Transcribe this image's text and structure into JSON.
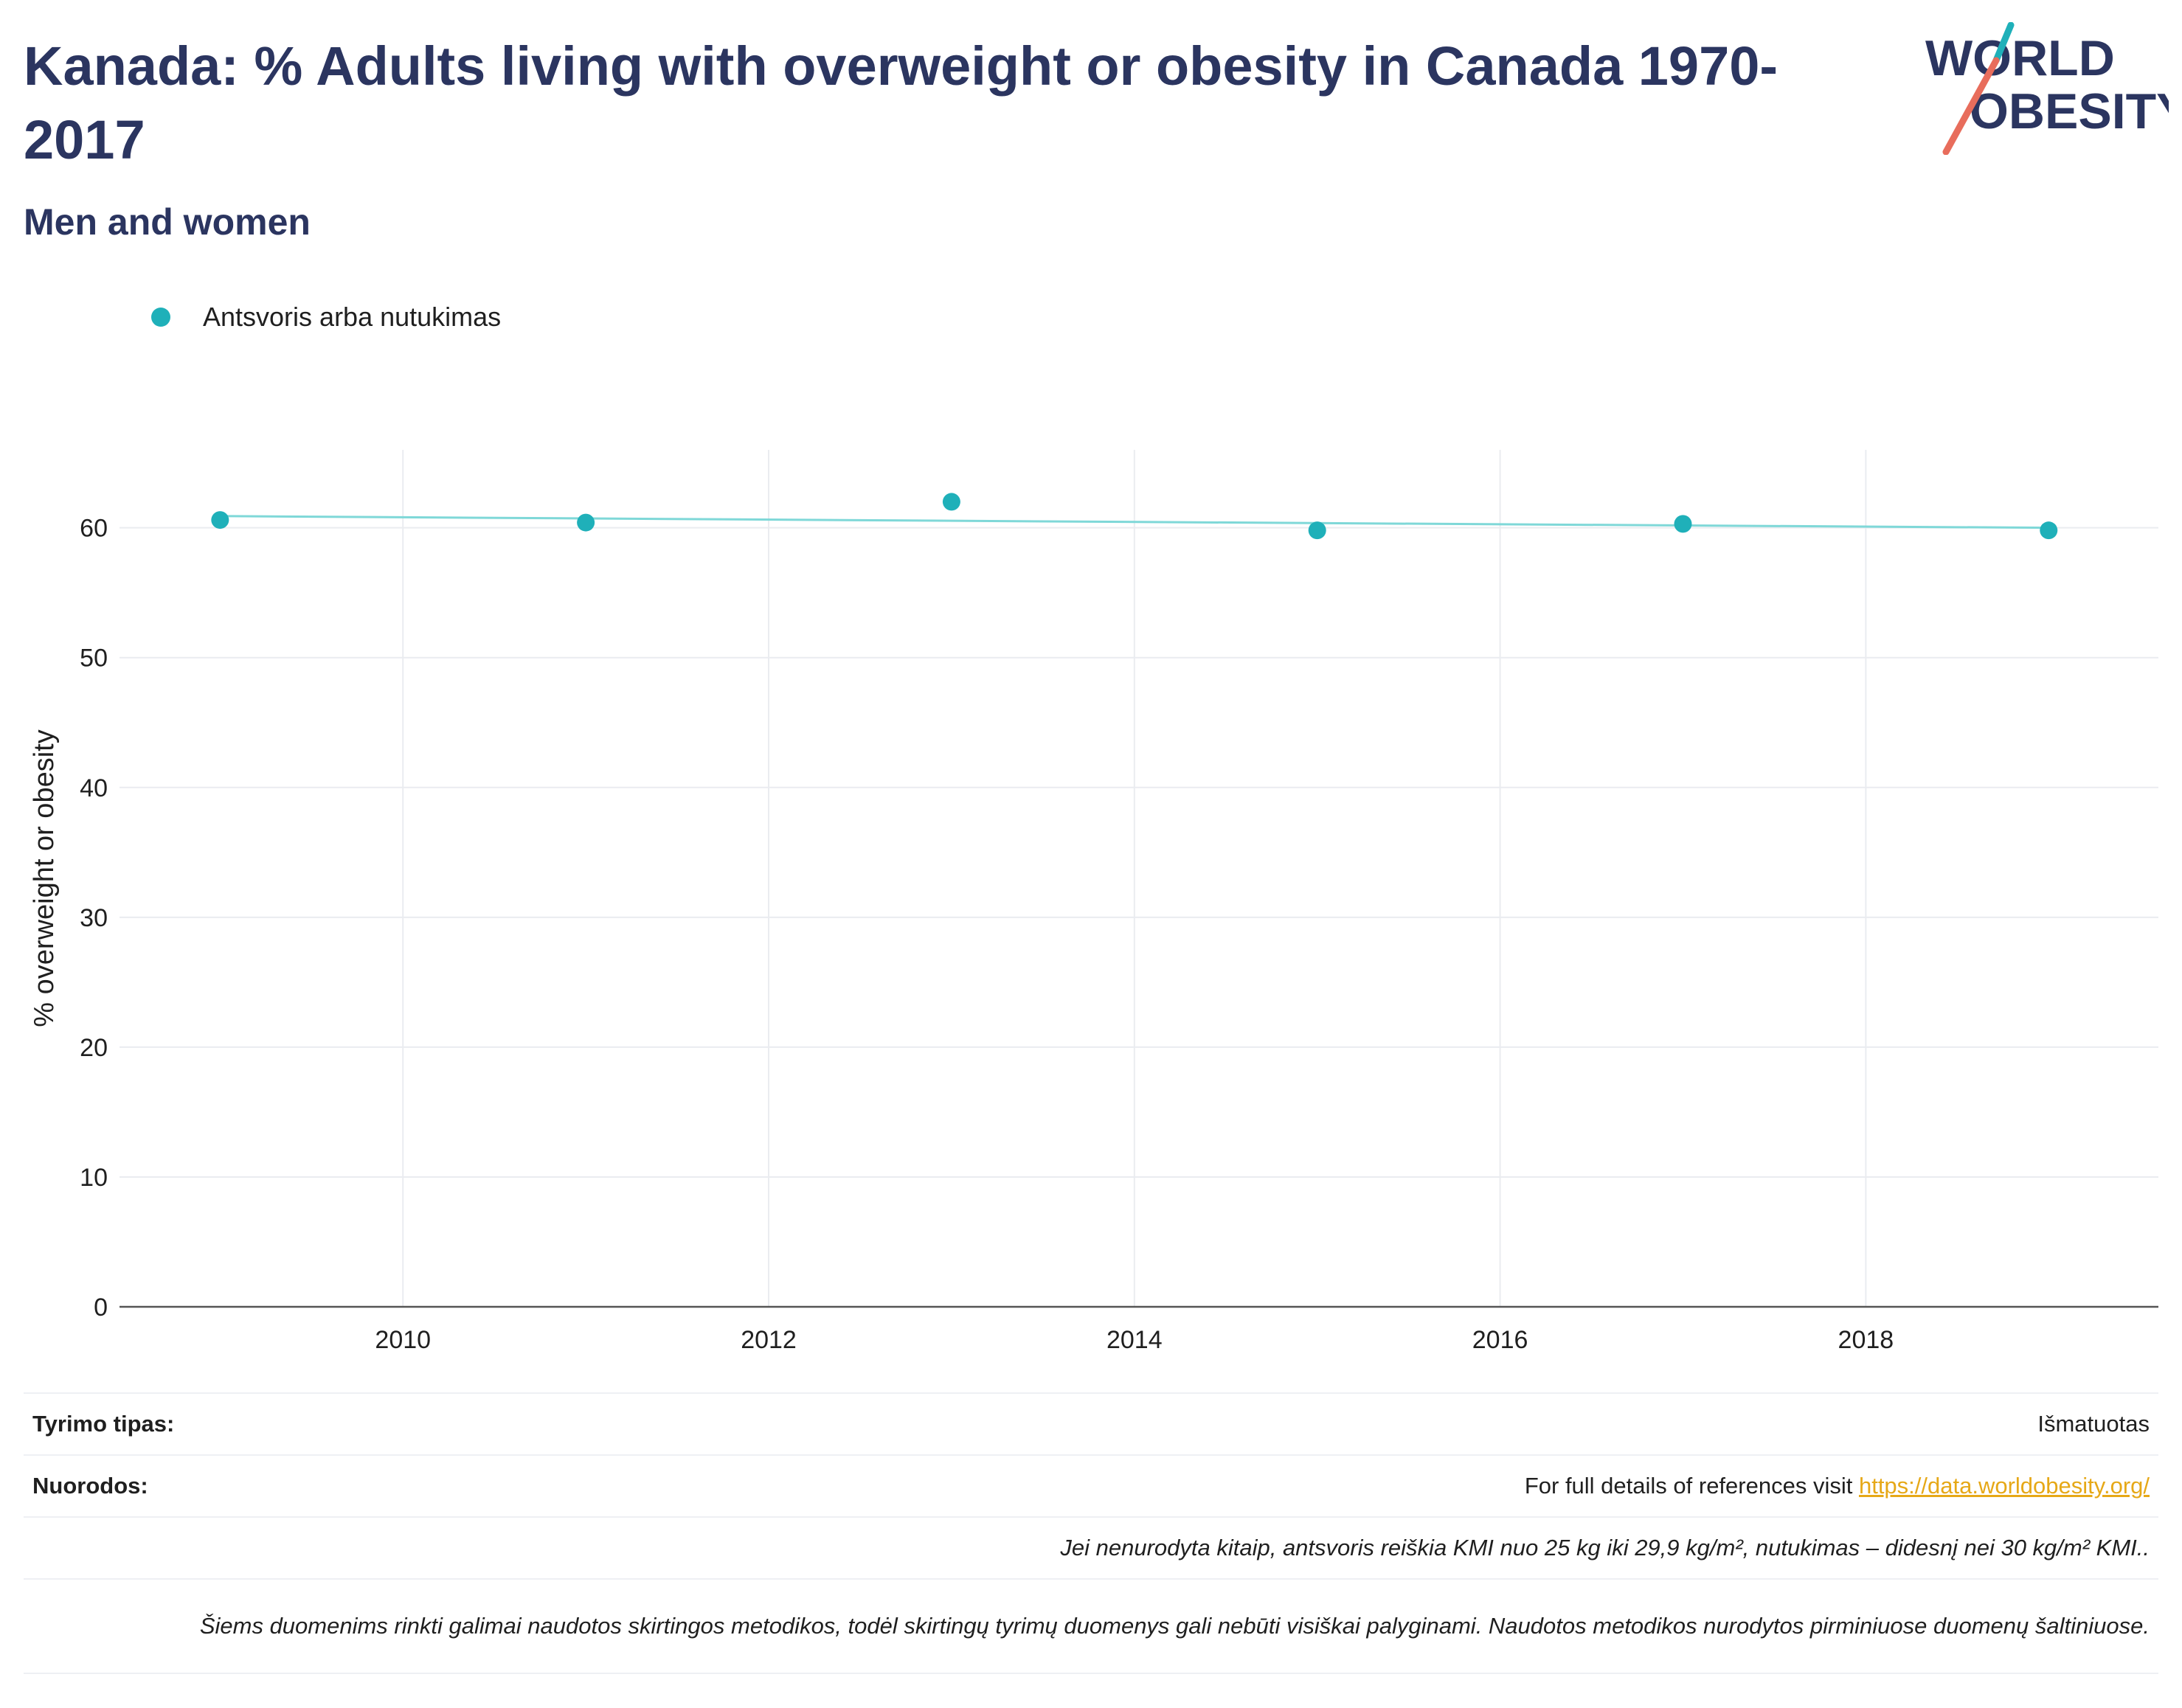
{
  "title": "Kanada: % Adults living with overweight or obesity in Canada 1970-2017",
  "subtitle": "Men and women",
  "logo": {
    "line1": "WORLD",
    "line2": "OBESITY"
  },
  "colors": {
    "series": "#1fb0b9",
    "trend": "#7fd8d8",
    "title": "#2b3560",
    "link": "#e6a817",
    "grid": "#eaecf0"
  },
  "chart_data": {
    "type": "scatter",
    "title": "Kanada: % Adults living with overweight or obesity in Canada 1970-2017",
    "subtitle": "Men and women",
    "xlabel": "",
    "ylabel": "% overweight or obesity",
    "xlim": [
      2008.45,
      2019.6
    ],
    "ylim": [
      0,
      66
    ],
    "x_ticks": [
      2010,
      2012,
      2014,
      2016,
      2018
    ],
    "y_ticks": [
      0,
      10,
      20,
      30,
      40,
      50,
      60
    ],
    "grid": true,
    "legend_position": "top-left",
    "series": [
      {
        "name": "Antsvoris arba nutukimas",
        "color": "#1fb0b9",
        "x": [
          2009,
          2011,
          2013,
          2015,
          2017,
          2019
        ],
        "y": [
          60.6,
          60.4,
          62.0,
          59.8,
          60.3,
          59.8
        ]
      }
    ],
    "trendline": {
      "color": "#7fd8d8",
      "x": [
        2009,
        2019
      ],
      "y": [
        60.9,
        60.0
      ]
    }
  },
  "info": {
    "survey_type_label": "Tyrimo tipas:",
    "survey_type_value": "Išmatuotas",
    "references_label": "Nuorodos:",
    "references_text": "For full details of references visit",
    "references_link": "https://data.worldobesity.org/",
    "note1": "Jei nenurodyta kitaip, antsvoris reiškia KMI nuo 25 kg iki 29,9 kg/m², nutukimas – didesnį nei 30 kg/m² KMI..",
    "note2": "Šiems duomenims rinkti galimai naudotos skirtingos metodikos, todėl skirtingų tyrimų duomenys gali nebūti visiškai palyginami. Naudotos metodikos nurodytos pirminiuose duomenų šaltiniuose."
  }
}
